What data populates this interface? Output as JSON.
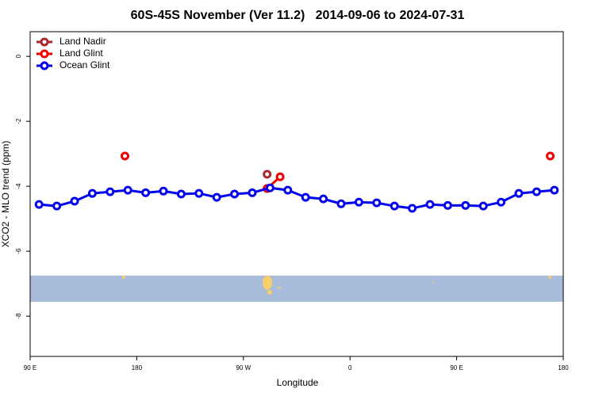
{
  "chart_data": {
    "type": "line",
    "title": "60S-45S November (Ver 11.2)   2014-09-06 to 2024-07-31",
    "xlabel": "Longitude",
    "ylabel": "XCO2 - MLO trend (ppm)",
    "xlim": [
      90,
      540
    ],
    "ylim": [
      -9.24,
      0.76
    ],
    "xticks": [
      {
        "value": 90,
        "label": "90 E"
      },
      180,
      {
        "value": 270,
        "label": "90 W"
      },
      {
        "value": 360,
        "label": "0"
      },
      {
        "value": 450,
        "label": "90 E"
      },
      {
        "value": 540,
        "label": "180"
      }
    ],
    "yticks": [
      0,
      -2,
      -4,
      -6,
      -8
    ],
    "grid": false,
    "legend": "upper left",
    "series": [
      {
        "name": "Land Nadir",
        "color": "#a52a2a",
        "x": [
          290
        ],
        "values": [
          -3.63
        ]
      },
      {
        "name": "Land Glint",
        "color": "#ee0000",
        "x": [
          170,
          null,
          290,
          301,
          null,
          529
        ],
        "values": [
          -3.07,
          null,
          -4.07,
          -3.71,
          null,
          -3.07
        ]
      },
      {
        "name": "Ocean Glint",
        "color": "#0000ee",
        "x": [
          97.5,
          112.5,
          127.5,
          142.5,
          157.5,
          172.5,
          187.5,
          202.5,
          217.5,
          232.5,
          247.5,
          262.5,
          277.5,
          292.5,
          307.5,
          322.5,
          337.5,
          352.5,
          367.5,
          382.5,
          397.5,
          412.5,
          427.5,
          442.5,
          457.5,
          472.5,
          487.5,
          502.5,
          517.5,
          532.5
        ],
        "values": [
          -4.56,
          -4.61,
          -4.46,
          -4.22,
          -4.17,
          -4.12,
          -4.2,
          -4.15,
          -4.24,
          -4.22,
          -4.34,
          -4.24,
          -4.2,
          -4.05,
          -4.12,
          -4.34,
          -4.39,
          -4.54,
          -4.49,
          -4.51,
          -4.61,
          -4.68,
          -4.56,
          -4.59,
          -4.59,
          -4.61,
          -4.49,
          -4.22,
          -4.17,
          -4.12
        ]
      }
    ]
  }
}
